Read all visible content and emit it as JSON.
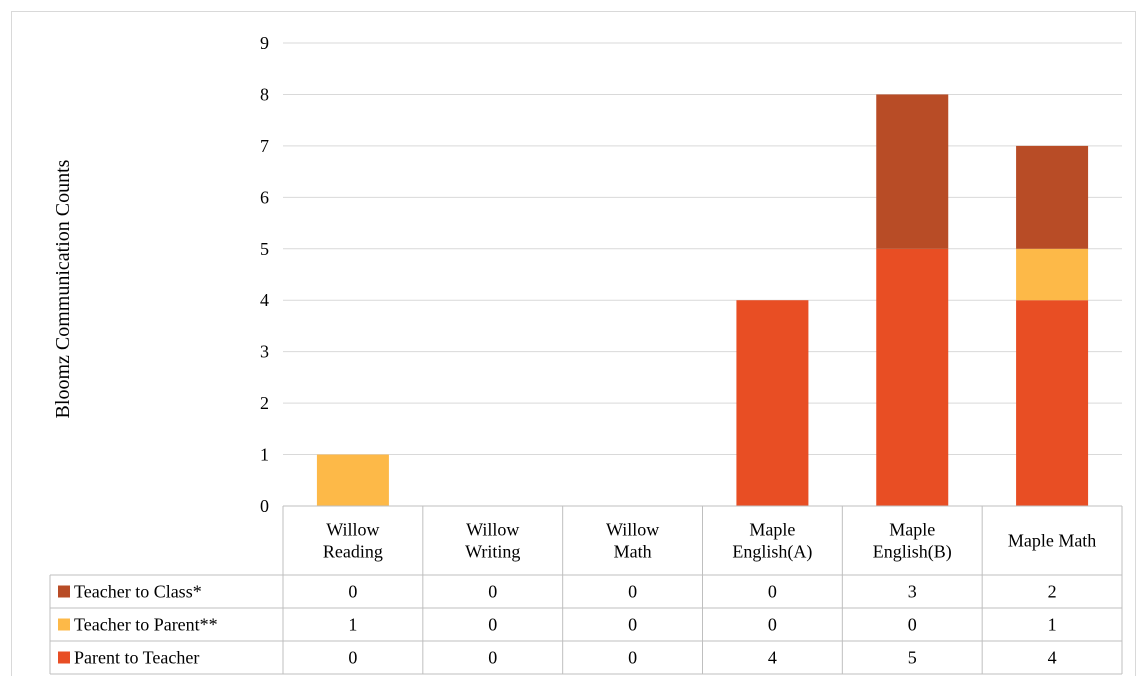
{
  "chart_data": {
    "type": "bar",
    "stacked": true,
    "ylabel": "Bloomz Communication Counts",
    "ylim": [
      0,
      9
    ],
    "yticks": [
      "0",
      "1",
      "2",
      "3",
      "4",
      "5",
      "6",
      "7",
      "8",
      "9"
    ],
    "grid": true,
    "legend": "data-table",
    "categories": [
      [
        "Willow",
        "Reading"
      ],
      [
        "Willow",
        "Writing"
      ],
      [
        "Willow",
        "Math"
      ],
      [
        "Maple",
        "English(A)"
      ],
      [
        "Maple",
        "English(B)"
      ],
      [
        "Maple Math"
      ]
    ],
    "series": [
      {
        "name": "Teacher to Class*",
        "color": "#B84C26",
        "values": [
          0,
          0,
          0,
          0,
          3,
          2
        ]
      },
      {
        "name": "Teacher to Parent**",
        "color": "#FDB948",
        "values": [
          1,
          0,
          0,
          0,
          0,
          1
        ]
      },
      {
        "name": "Parent to Teacher",
        "color": "#E84E24",
        "values": [
          0,
          0,
          0,
          4,
          5,
          4
        ]
      }
    ]
  }
}
